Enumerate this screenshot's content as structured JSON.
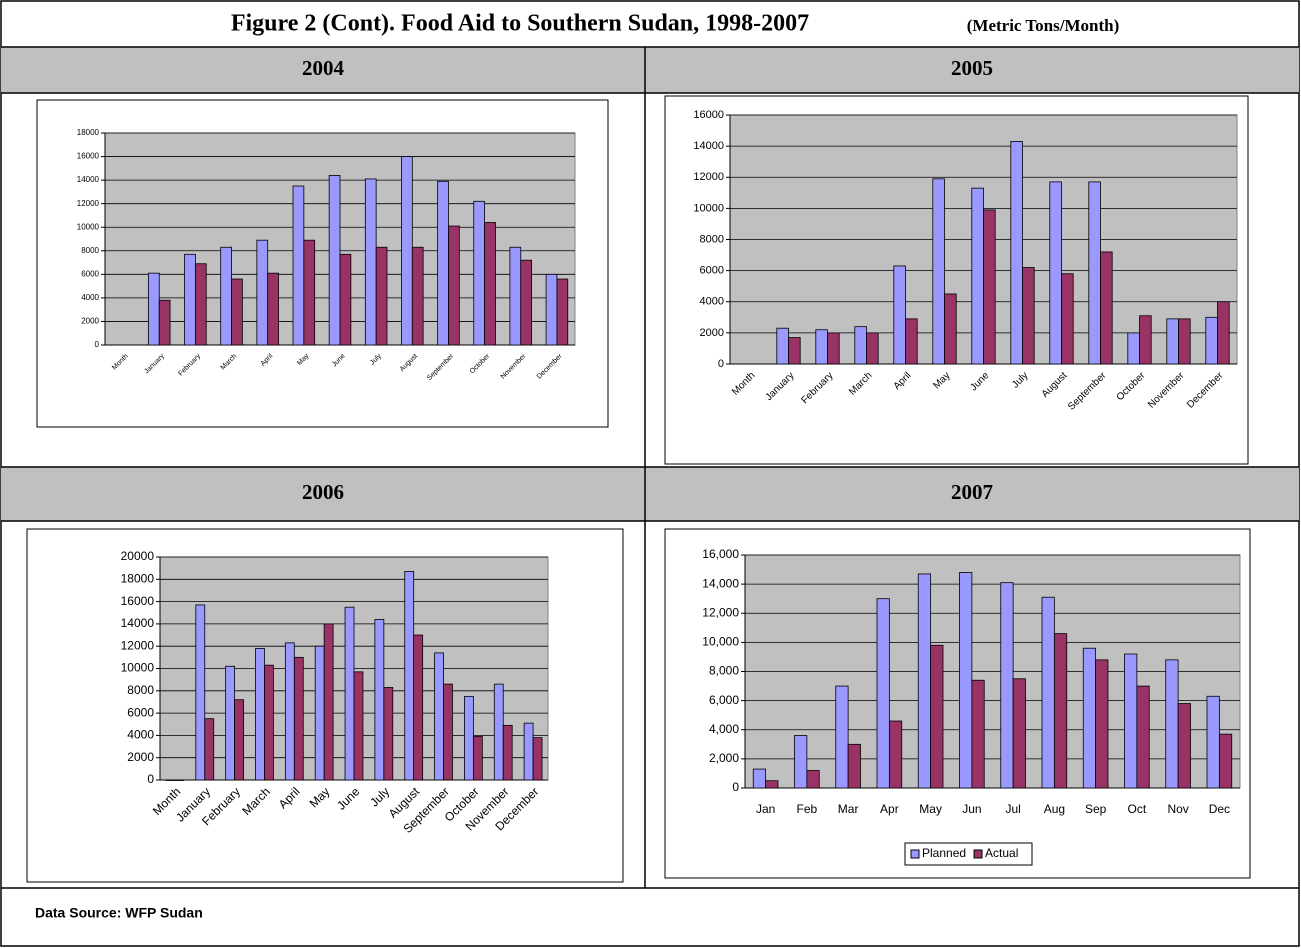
{
  "title": "Figure 2 (Cont). Food Aid to Southern Sudan, 1998-2007",
  "subtitle": "(Metric Tons/Month)",
  "source": "Data Source: WFP Sudan",
  "chart_data": [
    {
      "type": "bar",
      "title": "2004",
      "categories": [
        "Month",
        "January",
        "February",
        "March",
        "April",
        "May",
        "June",
        "July",
        "August",
        "September",
        "October",
        "November",
        "December"
      ],
      "series": [
        {
          "color": "#9999ff",
          "values": [
            null,
            6100,
            7700,
            8300,
            8900,
            13500,
            14400,
            14100,
            16000,
            13900,
            12200,
            8300,
            6000
          ]
        },
        {
          "color": "#993366",
          "values": [
            null,
            3800,
            6900,
            5600,
            6100,
            8900,
            7700,
            8300,
            8300,
            10100,
            10400,
            7200,
            5600
          ]
        }
      ],
      "ylim": [
        0,
        18000
      ],
      "yticks": [
        0,
        2000,
        4000,
        6000,
        8000,
        10000,
        12000,
        14000,
        16000,
        18000
      ],
      "grid": true
    },
    {
      "type": "bar",
      "title": "2005",
      "categories": [
        "Month",
        "January",
        "February",
        "March",
        "April",
        "May",
        "June",
        "July",
        "August",
        "September",
        "October",
        "November",
        "December"
      ],
      "series": [
        {
          "color": "#9999ff",
          "values": [
            null,
            2300,
            2200,
            2400,
            6300,
            11900,
            11300,
            14300,
            11700,
            11700,
            2000,
            2900,
            3000
          ]
        },
        {
          "color": "#993366",
          "values": [
            null,
            1700,
            2000,
            2000,
            2900,
            4500,
            9900,
            6200,
            5800,
            7200,
            3100,
            2900,
            4000
          ]
        }
      ],
      "ylim": [
        0,
        16000
      ],
      "yticks": [
        0,
        2000,
        4000,
        6000,
        8000,
        10000,
        12000,
        14000,
        16000
      ],
      "grid": true
    },
    {
      "type": "bar",
      "title": "2006",
      "categories": [
        "Month",
        "January",
        "February",
        "March",
        "April",
        "May",
        "June",
        "July",
        "August",
        "September",
        "October",
        "November",
        "December"
      ],
      "series": [
        {
          "color": "#9999ff",
          "values": [
            0,
            15700,
            10200,
            11800,
            12300,
            12000,
            15500,
            14400,
            18700,
            11400,
            7500,
            8600,
            5100
          ]
        },
        {
          "color": "#993366",
          "values": [
            0,
            5500,
            7200,
            10300,
            11000,
            14000,
            9700,
            8300,
            13000,
            8600,
            3900,
            4900,
            3800
          ]
        }
      ],
      "ylim": [
        0,
        20000
      ],
      "yticks": [
        0,
        2000,
        4000,
        6000,
        8000,
        10000,
        12000,
        14000,
        16000,
        18000,
        20000
      ],
      "grid": true
    },
    {
      "type": "bar",
      "title": "2007",
      "categories": [
        "Jan",
        "Feb",
        "Mar",
        "Apr",
        "May",
        "Jun",
        "Jul",
        "Aug",
        "Sep",
        "Oct",
        "Nov",
        "Dec"
      ],
      "series": [
        {
          "name": "Planned",
          "color": "#9999ff",
          "values": [
            1300,
            3600,
            7000,
            13000,
            14700,
            14800,
            14100,
            13100,
            9600,
            9200,
            8800,
            6300
          ]
        },
        {
          "name": "Actual",
          "color": "#993366",
          "values": [
            500,
            1200,
            3000,
            4600,
            9800,
            7400,
            7500,
            10600,
            8800,
            7000,
            5800,
            3700
          ]
        }
      ],
      "ylim": [
        0,
        16000
      ],
      "yticks": [
        0,
        {
          "value": 2000,
          "label": "2,000"
        },
        {
          "value": 4000,
          "label": "4,000"
        },
        {
          "value": 6000,
          "label": "6,000"
        },
        {
          "value": 8000,
          "label": "8,000"
        },
        {
          "value": 10000,
          "label": "10,000"
        },
        {
          "value": 12000,
          "label": "12,000"
        },
        {
          "value": 14000,
          "label": "14,000"
        },
        {
          "value": 16000,
          "label": "16,000"
        }
      ],
      "grid": true,
      "legend": "bottom"
    }
  ]
}
